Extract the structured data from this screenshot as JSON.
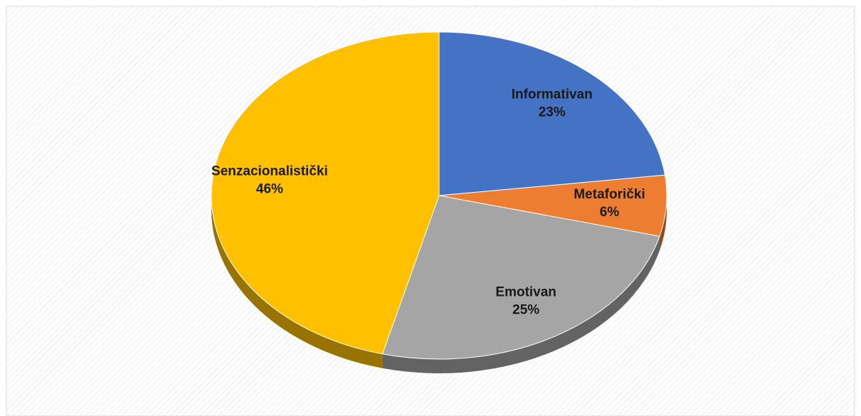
{
  "chart_data": {
    "type": "pie",
    "categories": [
      "Informativan",
      "Metaforički",
      "Emotivan",
      "Senzacionalistički"
    ],
    "values": [
      23,
      6,
      25,
      46
    ],
    "value_labels": [
      "23%",
      "6%",
      "25%",
      "46%"
    ],
    "colors": [
      "#4472c4",
      "#ed7d31",
      "#a5a5a5",
      "#ffc000"
    ]
  }
}
